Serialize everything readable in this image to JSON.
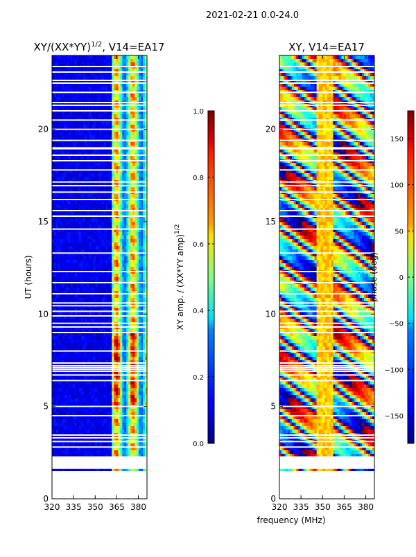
{
  "figure": {
    "date_label": "2021-02-21 0.0-24.0",
    "xlabel": "frequency (MHz)"
  },
  "chart_data": [
    {
      "type": "heatmap",
      "title_main": "XY/(XX*YY)",
      "title_sup": "1/2",
      "title_rest": ", V14=EA17",
      "ylabel": "UT (hours)",
      "xlim": [
        320,
        386
      ],
      "ylim": [
        0,
        24
      ],
      "x_ticks": [
        320,
        335,
        350,
        365,
        380
      ],
      "y_ticks": [
        0,
        5,
        10,
        15,
        20
      ],
      "colorbar": {
        "label_main": "XY amp. / (XX*YY amp)",
        "label_sup": "1/2",
        "range": [
          0,
          1
        ],
        "ticks": [
          "0.0",
          "0.2",
          "0.4",
          "0.6",
          "0.8",
          "1.0"
        ],
        "tick_values": [
          0,
          0.2,
          0.4,
          0.6,
          0.8,
          1.0
        ]
      },
      "data_start_hour": 1.5,
      "no_data_ranges": [
        [
          1.62,
          2.3
        ]
      ],
      "flagged_hours": [
        2.8,
        3.1,
        3.3,
        3.45,
        4.5,
        5.0,
        6.4,
        6.7,
        6.9,
        7.0,
        7.1,
        7.2,
        7.35,
        8.0,
        9.0,
        9.3,
        9.5,
        9.9,
        10.15,
        10.45,
        10.6,
        11.1,
        11.7,
        12.3,
        13.3,
        14.6,
        15.3,
        15.6,
        16.2,
        16.6,
        16.95,
        17.15,
        17.8,
        18.3,
        18.6,
        18.95,
        19.0,
        19.4,
        20.0,
        20.5,
        21.0,
        21.3,
        21.45,
        22.0,
        22.5,
        22.65,
        23.1,
        23.4
      ]
    },
    {
      "type": "heatmap",
      "title_main": "XY, V14=EA17",
      "title_sup": "",
      "title_rest": "",
      "ylabel": "",
      "xlim": [
        320,
        386
      ],
      "ylim": [
        0,
        24
      ],
      "x_ticks": [
        320,
        335,
        350,
        365,
        380
      ],
      "y_ticks": [
        0,
        5,
        10,
        15,
        20
      ],
      "colorbar": {
        "label_main": "phase (deg)",
        "label_sup": "",
        "range": [
          -180,
          180
        ],
        "ticks": [
          "−150",
          "−100",
          "−50",
          "0",
          "50",
          "100",
          "150"
        ],
        "tick_values": [
          -150,
          -100,
          -50,
          0,
          50,
          100,
          150
        ]
      },
      "data_start_hour": 1.5,
      "no_data_ranges": [
        [
          1.62,
          2.3
        ]
      ],
      "flagged_hours": [
        2.8,
        3.1,
        3.3,
        3.45,
        4.5,
        5.0,
        6.4,
        6.7,
        6.9,
        7.0,
        7.1,
        7.2,
        7.35,
        8.0,
        9.0,
        9.3,
        9.5,
        9.9,
        10.15,
        10.45,
        10.6,
        11.1,
        11.7,
        12.3,
        13.3,
        14.6,
        15.3,
        15.6,
        16.2,
        16.6,
        16.95,
        17.15,
        17.8,
        18.3,
        18.6,
        18.95,
        19.0,
        19.4,
        20.0,
        20.5,
        21.0,
        21.3,
        21.45,
        22.0,
        22.5,
        22.65,
        23.1,
        23.4
      ]
    }
  ]
}
